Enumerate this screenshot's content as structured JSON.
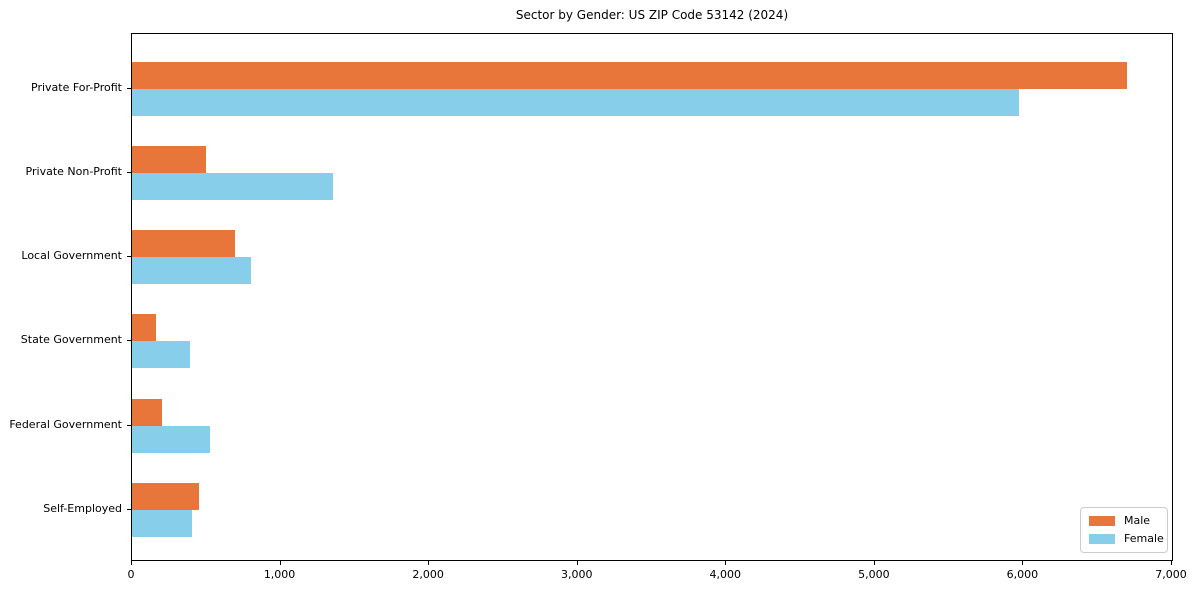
{
  "window": {
    "background": "#ffffff"
  },
  "colors": {
    "male": "#e8763b",
    "female": "#87ceeb",
    "axis": "#000000",
    "legend_border": "#cccccc"
  },
  "chart_data": {
    "type": "bar",
    "orientation": "horizontal",
    "title": "Sector by Gender: US ZIP Code 53142 (2024)",
    "xlabel": "",
    "ylabel": "",
    "categories": [
      "Private For-Profit",
      "Private Non-Profit",
      "Local Government",
      "State Government",
      "Federal Government",
      "Self-Employed"
    ],
    "series": [
      {
        "name": "Male",
        "color": "#e8763b",
        "values": [
          6700,
          500,
          690,
          160,
          205,
          450
        ]
      },
      {
        "name": "Female",
        "color": "#87ceeb",
        "values": [
          5970,
          1350,
          800,
          390,
          525,
          405
        ]
      }
    ],
    "xlim": [
      0,
      7000
    ],
    "x_ticks": [
      {
        "value": 0,
        "label": "0"
      },
      {
        "value": 1000,
        "label": "1,000"
      },
      {
        "value": 2000,
        "label": "2,000"
      },
      {
        "value": 3000,
        "label": "3,000"
      },
      {
        "value": 4000,
        "label": "4,000"
      },
      {
        "value": 5000,
        "label": "5,000"
      },
      {
        "value": 6000,
        "label": "6,000"
      },
      {
        "value": 7000,
        "label": "7,000"
      }
    ],
    "grid": false,
    "legend_position": "lower right"
  },
  "legend": {
    "items": [
      {
        "label": "Male"
      },
      {
        "label": "Female"
      }
    ]
  }
}
